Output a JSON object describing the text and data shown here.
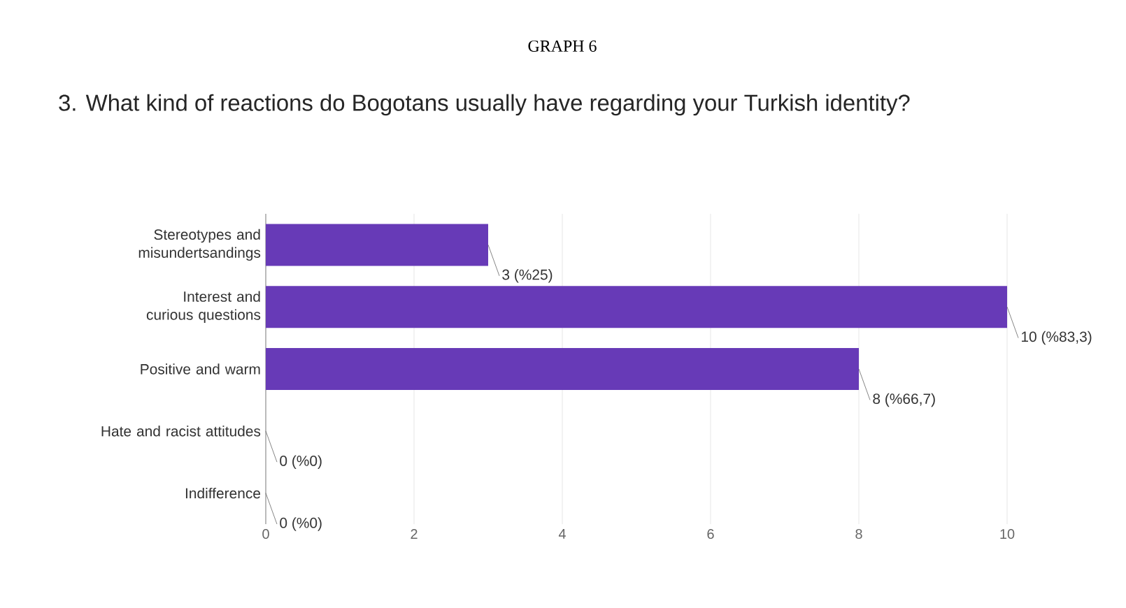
{
  "chart_data": {
    "type": "bar",
    "orientation": "horizontal",
    "title": "GRAPH 6",
    "subtitle": "3. What kind of reactions do Bogotans usually have regarding your Turkish identity?",
    "categories": [
      "Stereotypes and misundertsandings",
      "Interest and curious questions",
      "Positive and warm",
      "Hate and racist attitudes",
      "Indifference"
    ],
    "values": [
      3,
      10,
      8,
      0,
      0
    ],
    "value_labels": [
      "3 (%25)",
      "10 (%83,3)",
      "8 (%66,7)",
      "0 (%0)",
      "0 (%0)"
    ],
    "color": "#673ab7",
    "xlim": [
      0,
      10
    ],
    "xticks": [
      0,
      2,
      4,
      6,
      8,
      10
    ],
    "grid": "x"
  }
}
